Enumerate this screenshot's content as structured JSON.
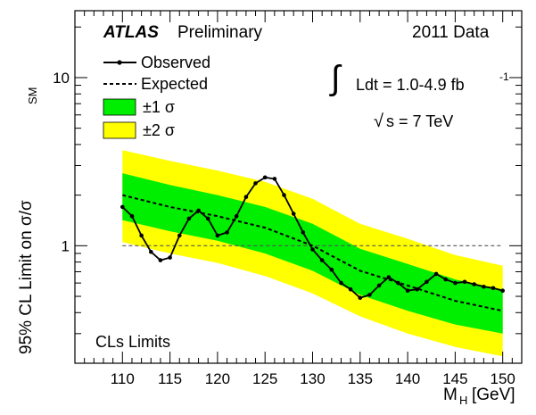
{
  "chart_data": {
    "type": "line",
    "header": {
      "experiment": "ATLAS",
      "status": "Preliminary",
      "dataset": "2011 Data"
    },
    "xlabel": "M",
    "xlabel_sub": "H",
    "xlabel_unit": "[GeV]",
    "ylabel": "95% CL Limit on σ/σ",
    "ylabel_sub": "SM",
    "xlim": [
      105,
      152
    ],
    "ylim": [
      0.2,
      25
    ],
    "yscale": "log",
    "x_ticks": [
      110,
      115,
      120,
      125,
      130,
      135,
      140,
      145,
      150
    ],
    "y_ticks": [
      {
        "value": 1,
        "label": "1"
      },
      {
        "value": 10,
        "label": "10"
      }
    ],
    "legend": {
      "position": "top-left",
      "observed": "Observed",
      "expected": "Expected",
      "band1": "±1 σ",
      "band2": "±2 σ"
    },
    "annotations": {
      "lumi_prefix": "Ldt = 1.0-4.9 fb",
      "lumi_exp": "-1",
      "energy_prefix": "s = 7 TeV",
      "method": "CLs Limits"
    },
    "reference_line": 1,
    "colors": {
      "band1": "#00ee00",
      "band2": "#ffff00",
      "line": "#000000"
    },
    "x": [
      110,
      115,
      120,
      125,
      130,
      135,
      140,
      145,
      150
    ],
    "series": [
      {
        "name": "Observed",
        "key": "observed",
        "x": [
          110,
          111,
          112,
          113,
          114,
          115,
          116,
          117,
          118,
          119,
          120,
          121,
          122,
          123,
          124,
          125,
          126,
          127,
          128,
          129,
          130,
          131,
          132,
          133,
          134,
          135,
          136,
          137,
          138,
          139,
          140,
          141,
          142,
          143,
          144,
          145,
          146,
          147,
          148,
          149,
          150
        ],
        "values": [
          1.7,
          1.5,
          1.15,
          0.92,
          0.82,
          0.85,
          1.15,
          1.45,
          1.62,
          1.45,
          1.15,
          1.2,
          1.5,
          1.95,
          2.35,
          2.55,
          2.5,
          2.0,
          1.55,
          1.2,
          0.95,
          0.82,
          0.72,
          0.6,
          0.55,
          0.49,
          0.51,
          0.58,
          0.65,
          0.6,
          0.54,
          0.55,
          0.61,
          0.68,
          0.63,
          0.6,
          0.61,
          0.59,
          0.57,
          0.56,
          0.54
        ]
      },
      {
        "name": "Expected",
        "key": "expected",
        "values": [
          2.0,
          1.7,
          1.5,
          1.28,
          1.0,
          0.71,
          0.58,
          0.47,
          0.41
        ]
      },
      {
        "name": "+1 sigma",
        "key": "up1",
        "values": [
          2.7,
          2.3,
          2.0,
          1.7,
          1.35,
          0.96,
          0.78,
          0.63,
          0.55
        ]
      },
      {
        "name": "-1 sigma",
        "key": "dn1",
        "values": [
          1.42,
          1.22,
          1.07,
          0.9,
          0.71,
          0.51,
          0.41,
          0.34,
          0.3
        ]
      },
      {
        "name": "+2 sigma",
        "key": "up2",
        "values": [
          3.7,
          3.2,
          2.8,
          2.4,
          1.9,
          1.35,
          1.1,
          0.88,
          0.76
        ]
      },
      {
        "name": "-2 sigma",
        "key": "dn2",
        "values": [
          1.05,
          0.9,
          0.79,
          0.66,
          0.52,
          0.38,
          0.3,
          0.25,
          0.22
        ]
      }
    ]
  }
}
